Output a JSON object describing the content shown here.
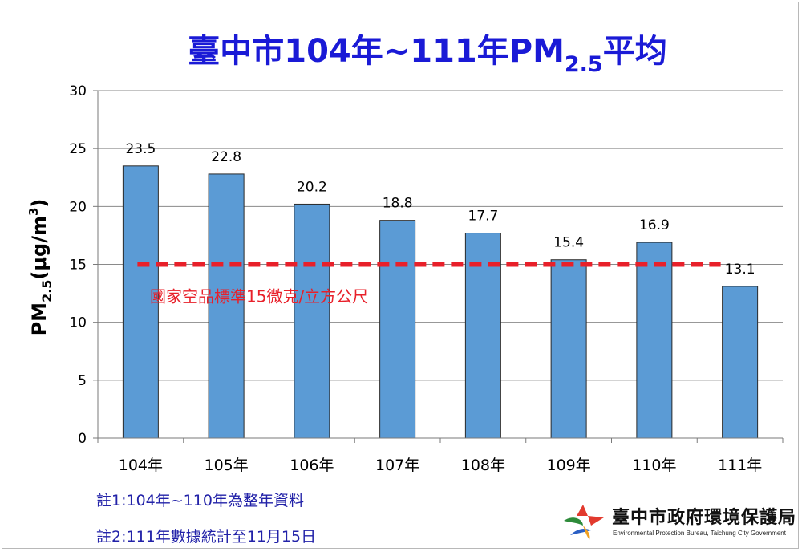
{
  "chart_data": {
    "type": "bar",
    "title_main": "臺中市104年~111年PM",
    "title_sub": "2.5",
    "title_end": "平均",
    "ylabel_main": "PM",
    "ylabel_sub": "2.5",
    "ylabel_end": "(μg/m",
    "ylabel_sup": "3",
    "ylabel_close": ")",
    "categories": [
      "104年",
      "105年",
      "106年",
      "107年",
      "108年",
      "109年",
      "110年",
      "111年"
    ],
    "values": [
      23.5,
      22.8,
      20.2,
      18.8,
      17.7,
      15.4,
      16.9,
      13.1
    ],
    "value_labels": [
      "23.5",
      "22.8",
      "20.2",
      "18.8",
      "17.7",
      "15.4",
      "16.9",
      "13.1"
    ],
    "ylim": [
      0,
      30
    ],
    "yticks": [
      0,
      5,
      10,
      15,
      20,
      25,
      30
    ],
    "grid": true,
    "reference_line": {
      "value": 15,
      "label": "國家空品標準15微克/立方公尺",
      "color": "#e8202a"
    },
    "bar_color": "#5b9bd5"
  },
  "notes": {
    "note1": "註1:104年~110年為整年資料",
    "note2": "註2:111年數據統計至11月15日"
  },
  "org": {
    "name": "臺中市政府環境保護局",
    "subtitle": "Environmental Protection Bureau, Taichung City Government",
    "logo_icon": "epb-logo-icon"
  }
}
